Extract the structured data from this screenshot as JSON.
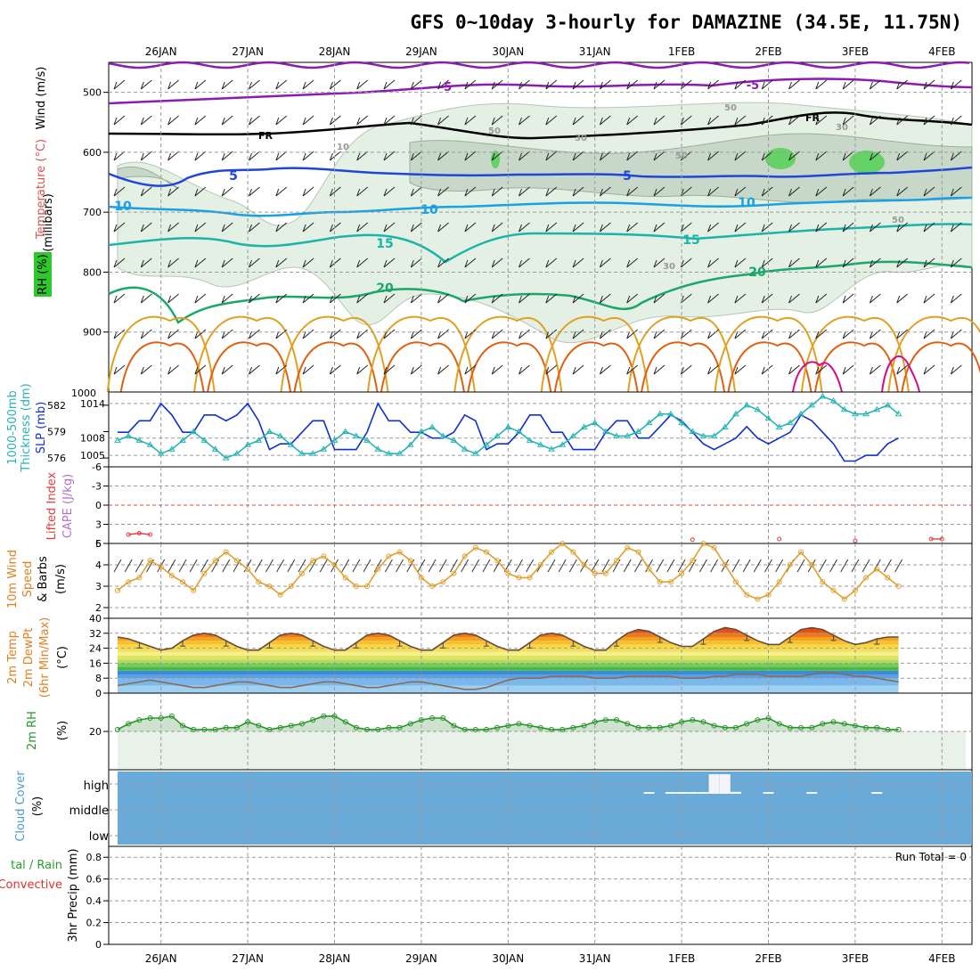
{
  "title": "GFS 0~10day 3-hourly for DAMAZINE (34.5E, 11.75N)",
  "dates": [
    "26JAN",
    "27JAN",
    "28JAN",
    "29JAN",
    "30JAN",
    "31JAN",
    "1FEB",
    "2FEB",
    "3FEB",
    "4FEB"
  ],
  "colors": {
    "temp_minus5": "#8a1cb0",
    "freezing": "#000000",
    "temp_5": "#2046d8",
    "temp_10": "#1aa0e6",
    "temp_15": "#1ab4a8",
    "temp_20": "#1aa86a",
    "temp_warm": "#e0a020",
    "temp_hot": "#e06010",
    "temp_hottest": "#d0108a",
    "rh_light": "#e4f0e4",
    "rh_mid": "#c8d8c8",
    "rh_high": "#64d264",
    "slp": "#1030d0",
    "thickness": "#28b4b4",
    "lifted_index": "#e04040",
    "wind_speed": "#e0a030",
    "rh2m": "#289628",
    "cloud": "#6aaad8",
    "precip_total": "#28a028"
  },
  "panels": {
    "upper_air": {
      "axis_title": "(millibars)",
      "wind_label": "Wind (m/s)",
      "temp_label": "Temperature (°C)",
      "rh_label": "RH (%)",
      "yticks": [
        "500",
        "600",
        "700",
        "800",
        "900",
        "1000"
      ],
      "contour_labels": [
        "-5",
        "-5",
        "FR",
        "FR",
        "5",
        "5",
        "10",
        "10",
        "10",
        "15",
        "15",
        "20",
        "20",
        "10",
        "30",
        "30",
        "30",
        "50",
        "50",
        "50",
        "50"
      ]
    },
    "slp_thickness": {
      "label_thickness": "1000-500mb",
      "label_thickness2": "Thickness (dm)",
      "label_slp": "SLP (mb)",
      "yticks_left": [
        "582",
        "579",
        "576"
      ],
      "yticks_right": [
        "1014",
        "1008",
        "1005"
      ]
    },
    "lifted_cape": {
      "label_li": "Lifted Index",
      "label_cape": "CAPE (J/kg)",
      "yticks": [
        "-6",
        "-3",
        "0",
        "3",
        "6"
      ]
    },
    "wind10m": {
      "label1": "10m Wind",
      "label2": "Speed",
      "label3": "& Barbs",
      "unit": "(m/s)",
      "yticks": [
        "5",
        "4",
        "3",
        "2"
      ]
    },
    "temp2m": {
      "label1": "2m Temp",
      "label2": "2m DewPt",
      "label3": "(6hr Min/Max)",
      "unit": "(°C)",
      "yticks": [
        "40",
        "32",
        "24",
        "16",
        "8",
        "0"
      ]
    },
    "rh2m": {
      "label": "2m RH",
      "unit": "(%)",
      "yticks": [
        "20"
      ]
    },
    "cloud": {
      "label": "Cloud Cover",
      "unit": "(%)",
      "levels": [
        "high",
        "middle",
        "low"
      ]
    },
    "precip": {
      "label1": "tal / Rain",
      "label2": "Convective",
      "label3": "3hr Precip (mm)",
      "run_total": "Run Total = 0",
      "yticks": [
        "0.8",
        "0.6",
        "0.4",
        "0.2",
        "0"
      ]
    }
  },
  "chart_data": [
    {
      "type": "line",
      "title": "1000-500mb Thickness (dm) / SLP (mb)",
      "x_unit": "3-hourly steps from 25JAN 12Z",
      "series": [
        {
          "name": "SLP (mb)",
          "axis": "right",
          "values": [
            1009,
            1009,
            1011,
            1011,
            1014,
            1012,
            1009,
            1009,
            1012,
            1012,
            1011,
            1012,
            1014,
            1011,
            1006,
            1007,
            1007,
            1009,
            1011,
            1011,
            1006,
            1006,
            1006,
            1009,
            1014,
            1011,
            1011,
            1009,
            1009,
            1008,
            1008,
            1009,
            1012,
            1011,
            1006,
            1007,
            1007,
            1009,
            1012,
            1012,
            1009,
            1009,
            1006,
            1006,
            1006,
            1009,
            1011,
            1011,
            1008,
            1008,
            1010,
            1012,
            1011,
            1009,
            1007,
            1006,
            1007,
            1008,
            1010,
            1008,
            1007,
            1008,
            1009,
            1012,
            1011,
            1009,
            1007,
            1004,
            1004,
            1005,
            1005,
            1007,
            1008
          ]
        },
        {
          "name": "1000-500mb Thickness (dm)",
          "axis": "left",
          "values": [
            578,
            578.5,
            578,
            577.5,
            576.5,
            577,
            578,
            579,
            578,
            577,
            576,
            576.5,
            577.5,
            578,
            579,
            578.5,
            577.5,
            576.5,
            576.5,
            577,
            578,
            579,
            578.5,
            578,
            577,
            576.5,
            576.5,
            577.5,
            579,
            579.5,
            578.5,
            578,
            577,
            576.5,
            577.5,
            578.5,
            579.5,
            579,
            578,
            577.5,
            577,
            577.5,
            578.5,
            579.5,
            580,
            579,
            578.5,
            578.5,
            579,
            580,
            581,
            581,
            580,
            579,
            578.5,
            578.5,
            579.5,
            581,
            582,
            581.5,
            580.5,
            579.5,
            580,
            581,
            582,
            583,
            582.5,
            581.5,
            581,
            581,
            581.5,
            582,
            581
          ]
        }
      ],
      "ylim_left": [
        575,
        583.5
      ],
      "ylim_right": [
        1003,
        1016
      ]
    },
    {
      "type": "line",
      "title": "Lifted Index",
      "series": [
        {
          "name": "Lifted Index",
          "points": [
            [
              1,
              4.6
            ],
            [
              2,
              4.4
            ],
            [
              3,
              4.6
            ],
            [
              53,
              5.4
            ],
            [
              61,
              5.3
            ],
            [
              68,
              5.6
            ],
            [
              75,
              5.3
            ],
            [
              76,
              5.3
            ],
            [
              86,
              5.6
            ],
            [
              87,
              5.2
            ],
            [
              88,
              5.2
            ],
            [
              89,
              5.6
            ],
            [
              95,
              5.6
            ],
            [
              96,
              4.6
            ],
            [
              97,
              4.3
            ],
            [
              98,
              4.1
            ],
            [
              99,
              4.6
            ],
            [
              100,
              5.5
            ]
          ]
        }
      ],
      "ylim": [
        6,
        -6
      ]
    },
    {
      "type": "line",
      "title": "10m Wind Speed (m/s)",
      "series": [
        {
          "name": "10m Wind Speed (m/s)",
          "values": [
            2.8,
            3.2,
            3.4,
            4.2,
            3.9,
            3.5,
            3.2,
            2.8,
            3.6,
            4.2,
            4.6,
            4.2,
            3.8,
            3.2,
            3.0,
            2.6,
            3.0,
            3.6,
            4.2,
            4.4,
            4.0,
            3.4,
            3.0,
            3.0,
            3.8,
            4.4,
            4.6,
            4.2,
            3.4,
            3.0,
            3.2,
            3.6,
            4.4,
            4.8,
            4.6,
            4.2,
            3.6,
            3.4,
            3.4,
            4.0,
            4.6,
            5.0,
            4.6,
            4.0,
            3.6,
            3.6,
            4.2,
            4.8,
            4.6,
            3.8,
            3.2,
            3.2,
            3.6,
            4.2,
            5.0,
            4.8,
            4.0,
            3.2,
            2.6,
            2.4,
            2.6,
            3.2,
            4.0,
            4.6,
            4.0,
            3.2,
            2.8,
            2.4,
            2.8,
            3.4,
            3.8,
            3.4,
            3.0
          ]
        }
      ],
      "ylim": [
        1.5,
        5
      ]
    },
    {
      "type": "area",
      "title": "2m Temp / 2m DewPt (°C)",
      "series": [
        {
          "name": "2m Temp",
          "values": [
            30,
            29,
            27,
            25,
            23,
            24,
            28,
            31,
            32,
            31,
            28,
            25,
            23,
            23,
            27,
            31,
            32,
            31,
            28,
            25,
            23,
            23,
            27,
            31,
            32,
            31,
            28,
            25,
            23,
            23,
            27,
            31,
            32,
            31,
            28,
            25,
            23,
            23,
            27,
            31,
            32,
            31,
            28,
            25,
            23,
            23,
            28,
            32,
            34,
            33,
            30,
            27,
            25,
            25,
            29,
            33,
            35,
            34,
            31,
            28,
            26,
            26,
            30,
            34,
            35,
            34,
            31,
            28,
            26,
            27,
            29,
            30,
            30
          ]
        },
        {
          "name": "2m DewPt",
          "values": [
            4,
            5,
            6,
            7,
            6,
            5,
            4,
            3,
            3,
            4,
            5,
            6,
            6,
            5,
            4,
            3,
            3,
            4,
            5,
            6,
            6,
            5,
            4,
            3,
            3,
            4,
            5,
            6,
            6,
            5,
            4,
            3,
            2,
            2,
            3,
            5,
            7,
            8,
            8,
            8,
            9,
            9,
            9,
            9,
            8,
            8,
            8,
            9,
            9,
            9,
            9,
            9,
            8,
            8,
            8,
            9,
            9,
            10,
            10,
            10,
            9,
            9,
            9,
            9,
            10,
            11,
            11,
            10,
            9,
            9,
            8,
            7,
            6
          ]
        }
      ],
      "ylim": [
        0,
        40
      ]
    },
    {
      "type": "area",
      "title": "2m RH (%)",
      "series": [
        {
          "name": "2m RH",
          "values": [
            21,
            24,
            26,
            27,
            27,
            28,
            23,
            21,
            21,
            21,
            22,
            22,
            25,
            23,
            21,
            22,
            23,
            24,
            26,
            28,
            28,
            25,
            22,
            21,
            21,
            22,
            22,
            24,
            26,
            27,
            27,
            23,
            21,
            21,
            21,
            22,
            23,
            24,
            23,
            22,
            21,
            21,
            22,
            23,
            25,
            26,
            26,
            24,
            22,
            22,
            22,
            23,
            25,
            26,
            25,
            23,
            22,
            22,
            24,
            26,
            27,
            24,
            22,
            22,
            22,
            24,
            25,
            24,
            23,
            22,
            22,
            21,
            21
          ]
        }
      ],
      "ylim": [
        0,
        40
      ]
    },
    {
      "type": "bar",
      "title": "Cloud Cover (%)",
      "series": [
        {
          "name": "high",
          "points": [
            [
              49,
              2
            ],
            [
              51,
              2
            ],
            [
              52,
              2
            ],
            [
              53,
              2
            ],
            [
              54,
              2
            ],
            [
              55,
              100
            ],
            [
              56,
              100
            ],
            [
              57,
              10
            ],
            [
              60,
              2
            ],
            [
              64,
              2
            ],
            [
              70,
              2
            ],
            [
              82,
              2
            ],
            [
              83,
              2
            ],
            [
              87,
              2
            ],
            [
              91,
              2
            ],
            [
              94,
              2
            ]
          ]
        },
        {
          "name": "middle",
          "points": [
            [
              82,
              4
            ],
            [
              83,
              4
            ]
          ]
        }
      ]
    },
    {
      "type": "line",
      "title": "3hr Precip (mm)",
      "series": [
        {
          "name": "3hr Precip (mm)",
          "values": [
            0
          ]
        }
      ],
      "ylim": [
        0,
        0.9
      ]
    }
  ]
}
